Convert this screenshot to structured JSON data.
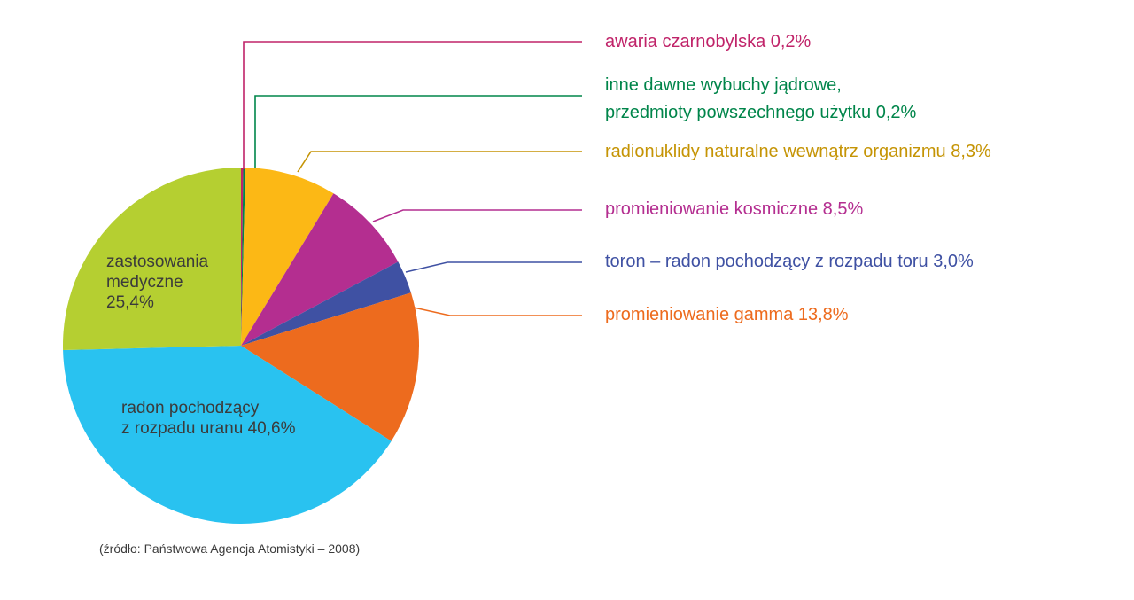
{
  "chart_data": {
    "type": "pie",
    "unit": "%",
    "background_color": "#ffffff",
    "direction": "clockwise",
    "start_angle_deg": 0,
    "slices": [
      {
        "name": "awaria czarnobylska",
        "value": 0.2,
        "color": "#c02369"
      },
      {
        "name": "inne dawne wybuchy jądrowe, przedmioty powszechnego użytku",
        "value": 0.2,
        "color": "#00854a"
      },
      {
        "name": "radionuklidy naturalne wewnątrz organizmu",
        "value": 8.3,
        "color": "#fcb815"
      },
      {
        "name": "promieniowanie kosmiczne",
        "value": 8.5,
        "color": "#b42e90"
      },
      {
        "name": "toron – radon pochodzący z rozpadu toru",
        "value": 3.0,
        "color": "#3f51a3"
      },
      {
        "name": "promieniowanie gamma",
        "value": 13.8,
        "color": "#ed6b1e"
      },
      {
        "name": "radon pochodzący z rozpadu uranu",
        "value": 40.6,
        "color": "#29c2f0"
      },
      {
        "name": "zastosowania medyczne",
        "value": 25.4,
        "color": "#b5cf31"
      }
    ],
    "inner_labels": [
      {
        "lines": [
          "zastosowania",
          "medyczne",
          "25,4%"
        ]
      },
      {
        "lines": [
          "radon pochodzący",
          "z rozpadu uranu 40,6%"
        ]
      }
    ],
    "callout_labels": [
      {
        "lines": [
          "awaria czarnobylska 0,2%"
        ],
        "color": "#c02369"
      },
      {
        "lines": [
          "inne dawne wybuchy jądrowe,",
          "przedmioty powszechnego użytku 0,2%"
        ],
        "color": "#00854a"
      },
      {
        "lines": [
          "radionuklidy naturalne wewnątrz organizmu 8,3%"
        ],
        "color": "#c59405"
      },
      {
        "lines": [
          "promieniowanie kosmiczne 8,5%"
        ],
        "color": "#b42e90"
      },
      {
        "lines": [
          "toron – radon pochodzący z rozpadu toru 3,0%"
        ],
        "color": "#3f51a3"
      },
      {
        "lines": [
          "promieniowanie gamma 13,8%"
        ],
        "color": "#ed6b1e"
      }
    ],
    "source_caption": "(źródło: Państwowa Agencja Atomistyki – 2008)"
  }
}
